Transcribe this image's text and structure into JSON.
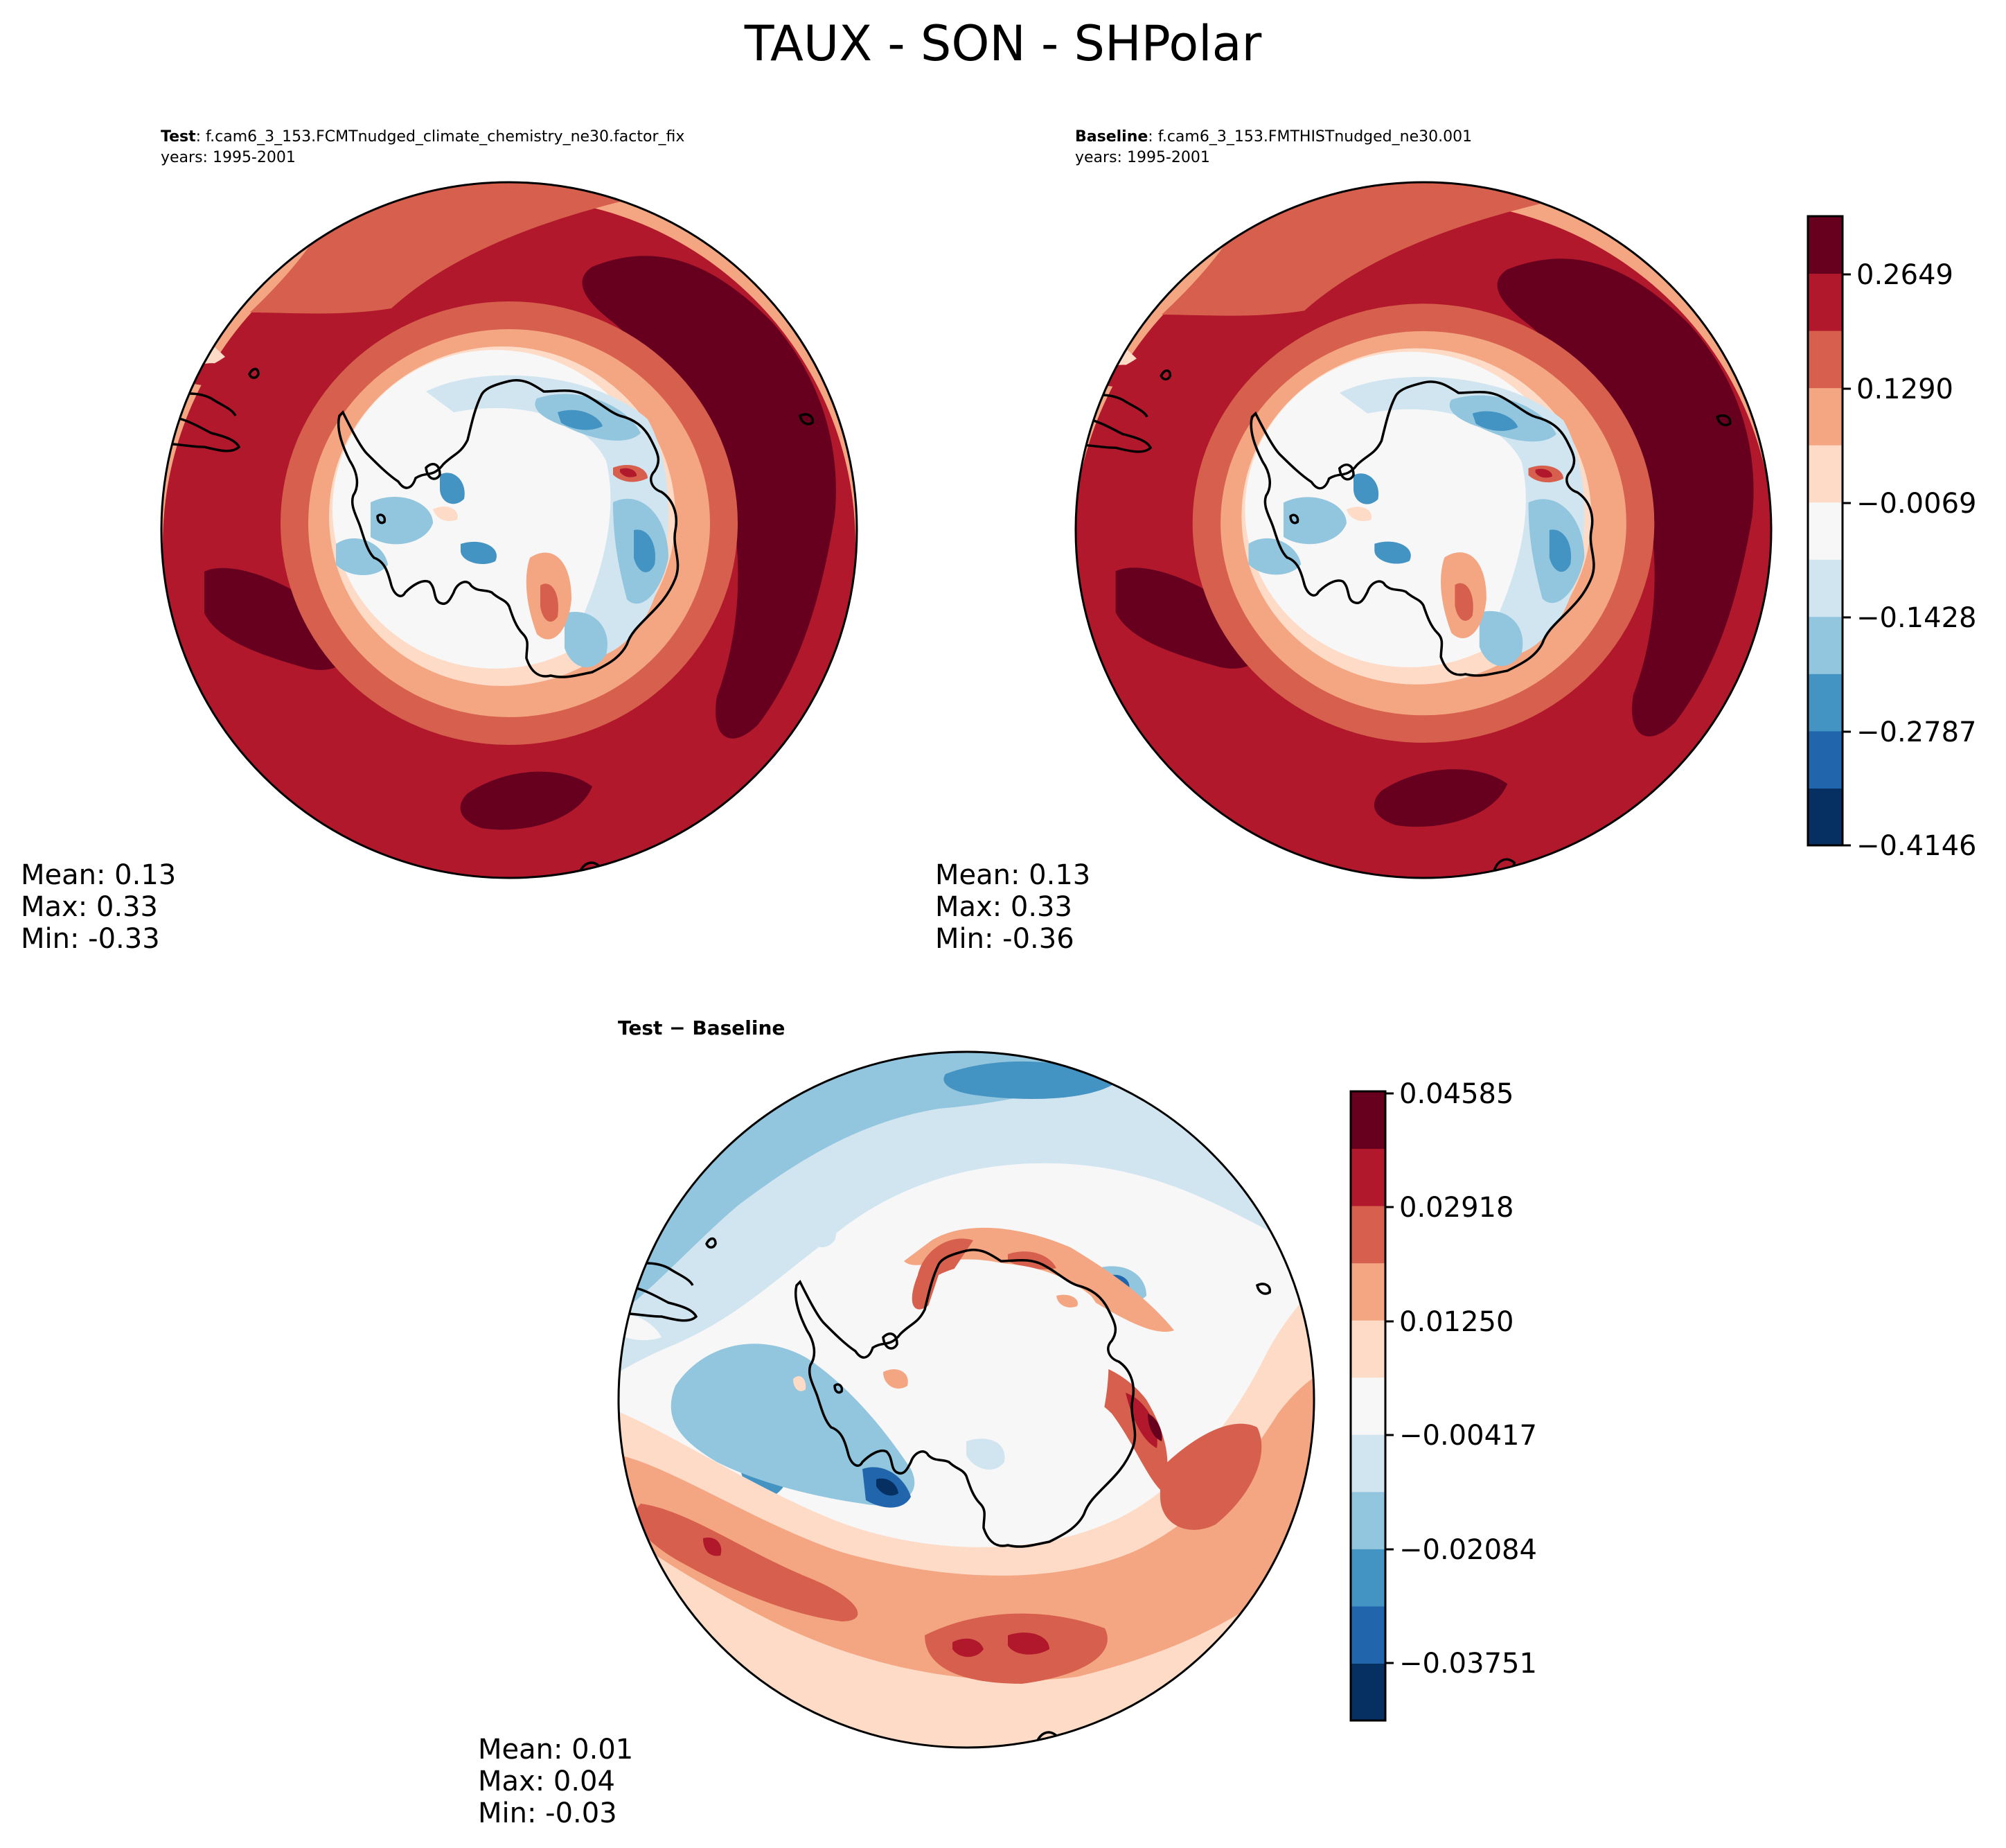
{
  "title": "TAUX - SON - SHPolar",
  "colorbars": {
    "main": {
      "tick_labels": [
        "0.2649",
        "0.1290",
        "−0.0069",
        "−0.1428",
        "−0.2787",
        "−0.4146"
      ],
      "level_colors": [
        "#053061",
        "#2166ac",
        "#4393c3",
        "#92c5de",
        "#d1e5f0",
        "#f7f7f7",
        "#fddbc7",
        "#f4a582",
        "#d6604d",
        "#b2182b",
        "#67001f"
      ]
    },
    "diff": {
      "tick_labels": [
        "0.04585",
        "0.02918",
        "0.01250",
        "−0.00417",
        "−0.02084",
        "−0.03751"
      ],
      "level_colors": [
        "#053061",
        "#2166ac",
        "#4393c3",
        "#92c5de",
        "#d1e5f0",
        "#f7f7f7",
        "#fddbc7",
        "#f4a582",
        "#d6604d",
        "#b2182b",
        "#67001f"
      ]
    }
  },
  "panels": {
    "test": {
      "label": "Test",
      "case": ": f.cam6_3_153.FCMTnudged_climate_chemistry_ne30.factor_fix",
      "years": "years: 1995-2001",
      "mean": "Mean:  0.13",
      "max": "Max:  0.33",
      "min": "Min: -0.33"
    },
    "baseline": {
      "label": "Baseline",
      "case": ": f.cam6_3_153.FMTHISTnudged_ne30.001",
      "years": "years: 1995-2001",
      "mean": "Mean:  0.13",
      "max": "Max:  0.33",
      "min": "Min: -0.36"
    },
    "diff": {
      "label": "Test − Baseline",
      "mean": "Mean:  0.01",
      "max": "Max:  0.04",
      "min": "Min: -0.03"
    }
  },
  "chart_data": [
    {
      "type": "heatmap",
      "title": "Test: f.cam6_3_153.FCMTnudged_climate_chemistry_ne30.factor_fix",
      "subtitle": "years: 1995-2001",
      "projection": "South Polar Stereographic",
      "variable": "TAUX",
      "season": "SON",
      "colorbar_ticks": [
        0.2649,
        0.129,
        -0.0069,
        -0.1428,
        -0.2787,
        -0.4146
      ],
      "colorbar_range": [
        -0.4146,
        0.3328
      ],
      "stats": {
        "mean": 0.13,
        "max": 0.33,
        "min": -0.33
      }
    },
    {
      "type": "heatmap",
      "title": "Baseline: f.cam6_3_153.FMTHISTnudged_ne30.001",
      "subtitle": "years: 1995-2001",
      "projection": "South Polar Stereographic",
      "variable": "TAUX",
      "season": "SON",
      "colorbar_ticks": [
        0.2649,
        0.129,
        -0.0069,
        -0.1428,
        -0.2787,
        -0.4146
      ],
      "colorbar_range": [
        -0.4146,
        0.3328
      ],
      "stats": {
        "mean": 0.13,
        "max": 0.33,
        "min": -0.36
      }
    },
    {
      "type": "heatmap",
      "title": "Test − Baseline",
      "projection": "South Polar Stereographic",
      "variable": "TAUX",
      "season": "SON",
      "colorbar_ticks": [
        0.04585,
        0.02918,
        0.0125,
        -0.00417,
        -0.02084,
        -0.03751
      ],
      "colorbar_range": [
        -0.04585,
        0.04585
      ],
      "stats": {
        "mean": 0.01,
        "max": 0.04,
        "min": -0.03
      }
    }
  ]
}
